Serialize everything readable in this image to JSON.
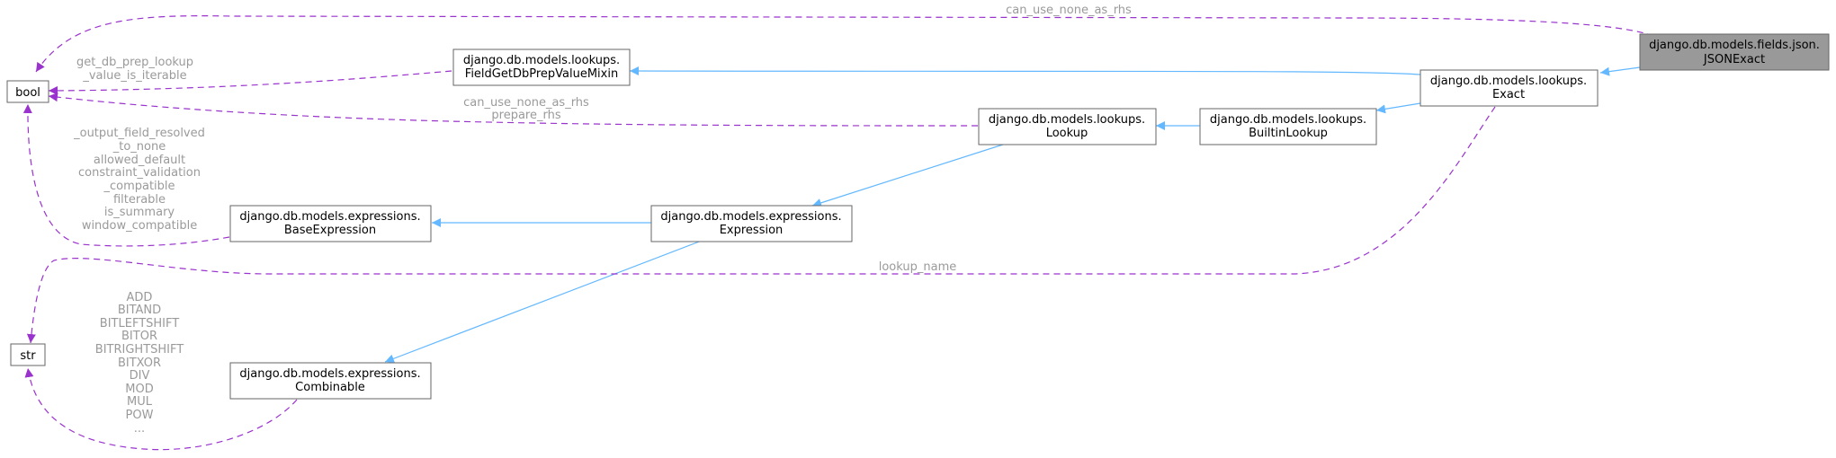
{
  "nodes": {
    "jsonexact": {
      "lines": [
        "django.db.models.fields.json.",
        "JSONExact"
      ]
    },
    "exact": {
      "lines": [
        "django.db.models.lookups.",
        "Exact"
      ]
    },
    "fieldgetdbprep": {
      "lines": [
        "django.db.models.lookups.",
        "FieldGetDbPrepValueMixin"
      ]
    },
    "builtinlookup": {
      "lines": [
        "django.db.models.lookups.",
        "BuiltinLookup"
      ]
    },
    "lookup": {
      "lines": [
        "django.db.models.lookups.",
        "Lookup"
      ]
    },
    "expression": {
      "lines": [
        "django.db.models.expressions.",
        "Expression"
      ]
    },
    "baseexpression": {
      "lines": [
        "django.db.models.expressions.",
        "BaseExpression"
      ]
    },
    "combinable": {
      "lines": [
        "django.db.models.expressions.",
        "Combinable"
      ]
    },
    "bool": {
      "lines": [
        "bool"
      ]
    },
    "str": {
      "lines": [
        "str"
      ]
    }
  },
  "edge_labels": {
    "can_use_none_as_rhs_top": [
      "can_use_none_as_rhs"
    ],
    "get_db_prep": [
      "get_db_prep_lookup",
      "_value_is_iterable"
    ],
    "lookup_bool": [
      "can_use_none_as_rhs",
      "prepare_rhs"
    ],
    "baseexpr_bool": [
      "_output_field_resolved",
      "_to_none",
      "allowed_default",
      "constraint_validation",
      "_compatible",
      "filterable",
      "is_summary",
      "window_compatible"
    ],
    "lookup_name": [
      "lookup_name"
    ],
    "combinable_str": [
      "ADD",
      "BITAND",
      "BITLEFTSHIFT",
      "BITOR",
      "BITRIGHTSHIFT",
      "BITXOR",
      "DIV",
      "MOD",
      "MUL",
      "POW",
      "..."
    ]
  },
  "colors": {
    "inheritance": "#63b8ff",
    "usage": "#9a32cd",
    "label": "#9a9a9a",
    "focus_fill": "#999999"
  }
}
